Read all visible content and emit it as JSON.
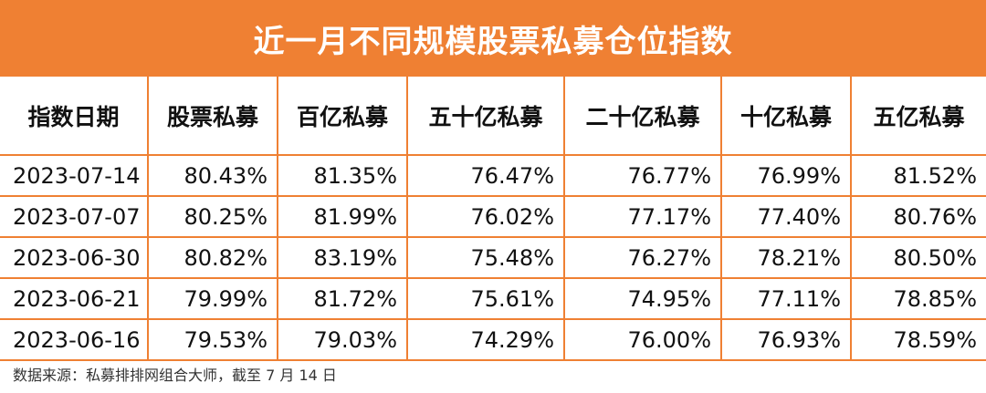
{
  "chart_data": {
    "type": "table",
    "title": "近一月不同规模股票私募仓位指数",
    "columns": [
      "指数日期",
      "股票私募",
      "百亿私募",
      "五十亿私募",
      "二十亿私募",
      "十亿私募",
      "五亿私募"
    ],
    "rows": [
      [
        "2023-07-14",
        "80.43%",
        "81.35%",
        "76.47%",
        "76.77%",
        "76.99%",
        "81.52%"
      ],
      [
        "2023-07-07",
        "80.25%",
        "81.99%",
        "76.02%",
        "77.17%",
        "77.40%",
        "80.76%"
      ],
      [
        "2023-06-30",
        "80.82%",
        "83.19%",
        "75.48%",
        "76.27%",
        "78.21%",
        "80.50%"
      ],
      [
        "2023-06-21",
        "79.99%",
        "81.72%",
        "75.61%",
        "74.95%",
        "77.11%",
        "78.85%"
      ],
      [
        "2023-06-16",
        "79.53%",
        "79.03%",
        "74.29%",
        "76.00%",
        "76.93%",
        "78.59%"
      ]
    ],
    "source": "数据来源：私募排排网组合大师，截至 7 月 14 日"
  },
  "colors": {
    "accent": "#ef8033",
    "header_text": "#ffffff",
    "body_text": "#111111"
  }
}
